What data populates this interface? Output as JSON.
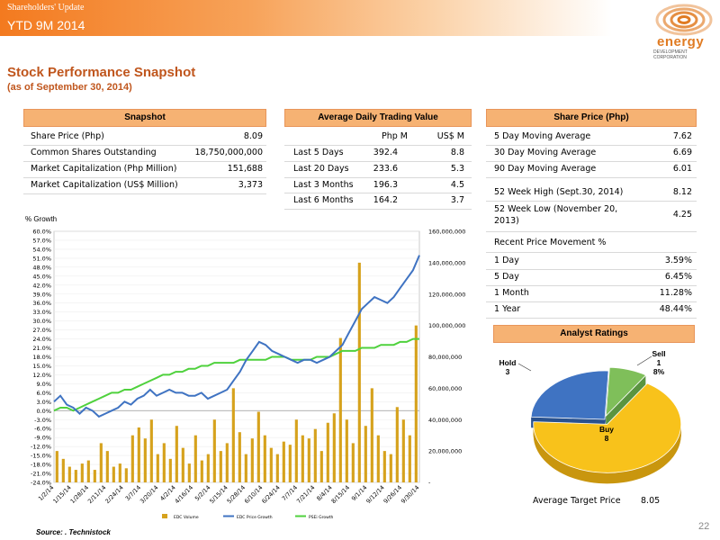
{
  "header": {
    "top_label": "Shareholders' Update",
    "period_label": "YTD 9M 2014",
    "logo_word": "energy",
    "logo_sub": "DEVELOPMENT CORPORATION"
  },
  "title": "Stock Performance Snapshot",
  "subtitle": "(as of September 30, 2014)",
  "snapshot": {
    "heading": "Snapshot",
    "rows": [
      {
        "label": "Share Price (Php)",
        "value": "8.09"
      },
      {
        "label": "Common Shares Outstanding",
        "value": "18,750,000,000"
      },
      {
        "label": "Market Capitalization (Php Million)",
        "value": "151,688"
      },
      {
        "label": "Market Capitalization (US$ Million)",
        "value": "3,373"
      }
    ]
  },
  "trading": {
    "heading": "Average Daily Trading Value",
    "col1": "Php M",
    "col2": "US$ M",
    "rows": [
      {
        "label": "Last 5 Days",
        "php": "392.4",
        "usd": "8.8"
      },
      {
        "label": "Last 20 Days",
        "php": "233.6",
        "usd": "5.3"
      },
      {
        "label": "Last 3 Months",
        "php": "196.3",
        "usd": "4.5"
      },
      {
        "label": "Last 6 Months",
        "php": "164.2",
        "usd": "3.7"
      }
    ]
  },
  "share_price": {
    "heading": "Share Price (Php)",
    "rows": [
      {
        "label": "5 Day Moving Average",
        "value": "7.62"
      },
      {
        "label": "30 Day Moving Average",
        "value": "6.69"
      },
      {
        "label": "90 Day Moving Average",
        "value": "6.01"
      },
      {
        "label": "52 Week High (Sept.30, 2014)",
        "value": "8.12"
      },
      {
        "label": "52 Week Low (November 20, 2013)",
        "value": "4.25"
      }
    ],
    "movement_heading": "Recent Price Movement %",
    "movement": [
      {
        "label": "1 Day",
        "value": "3.59%"
      },
      {
        "label": "5 Day",
        "value": "6.45%"
      },
      {
        "label": "1 Month",
        "value": "11.28%"
      },
      {
        "label": "1 Year",
        "value": "48.44%"
      }
    ]
  },
  "analyst": {
    "heading": "Analyst Ratings",
    "target_label": "Average Target Price",
    "target_value": "8.05"
  },
  "source": "Source: . Technistock",
  "page_number": "22",
  "chart_data": [
    {
      "type": "line",
      "ylabel": "% Growth",
      "ylim": [
        -24,
        60
      ],
      "y2lim": [
        0,
        160000000
      ],
      "y_ticks": [
        "60.0%",
        "57.0%",
        "54.0%",
        "51.0%",
        "48.0%",
        "45.0%",
        "42.0%",
        "39.0%",
        "36.0%",
        "33.0%",
        "30.0%",
        "27.0%",
        "24.0%",
        "21.0%",
        "18.0%",
        "15.0%",
        "12.0%",
        "9.0%",
        "6.0%",
        "3.0%",
        "0.0%",
        "-3.0%",
        "-6.0%",
        "-9.0%",
        "-12.0%",
        "-15.0%",
        "-18.0%",
        "-21.0%",
        "-24.0%"
      ],
      "y2_ticks": [
        "160,000,000",
        "140,000,000",
        "120,000,000",
        "100,000,000",
        "80,000,000",
        "60,000,000",
        "40,000,000",
        "20,000,000",
        "-"
      ],
      "x_ticks": [
        "1/2/14",
        "1/15/14",
        "1/28/14",
        "2/11/14",
        "2/24/14",
        "3/7/14",
        "3/20/14",
        "4/2/14",
        "4/16/14",
        "5/2/14",
        "5/15/14",
        "5/28/14",
        "6/10/14",
        "6/24/14",
        "7/7/14",
        "7/21/14",
        "8/4/14",
        "8/15/14",
        "9/1/14",
        "9/12/14",
        "9/26/14",
        "9/30/14"
      ],
      "legend": [
        "EDC Volume",
        "EDC Price Growth",
        "PSEi Growth"
      ],
      "series": [
        {
          "name": "EDC Price Growth",
          "color": "#3f73c2",
          "values": [
            3,
            5,
            2,
            1,
            -1,
            1,
            0,
            -2,
            -1,
            0,
            1,
            3,
            2,
            4,
            5,
            7,
            5,
            6,
            7,
            6,
            6,
            5,
            5,
            6,
            4,
            5,
            6,
            7,
            10,
            13,
            17,
            20,
            23,
            22,
            20,
            19,
            18,
            17,
            16,
            17,
            17,
            16,
            17,
            18,
            20,
            22,
            26,
            30,
            34,
            36,
            38,
            37,
            36,
            38,
            41,
            44,
            47,
            52
          ]
        },
        {
          "name": "PSEi Growth",
          "color": "#4fd13d",
          "values": [
            0,
            1,
            1,
            0,
            1,
            2,
            3,
            4,
            5,
            6,
            6,
            7,
            7,
            8,
            9,
            10,
            11,
            12,
            12,
            13,
            13,
            14,
            14,
            15,
            15,
            16,
            16,
            16,
            16,
            17,
            17,
            17,
            17,
            17,
            18,
            18,
            18,
            17,
            17,
            17,
            17,
            18,
            18,
            18,
            19,
            20,
            20,
            20,
            21,
            21,
            21,
            22,
            22,
            22,
            23,
            23,
            24,
            24
          ]
        },
        {
          "name": "EDC Volume",
          "color": "#d6a21d",
          "values": [
            20,
            15,
            10,
            8,
            12,
            14,
            8,
            25,
            20,
            10,
            12,
            9,
            30,
            35,
            28,
            40,
            18,
            25,
            15,
            36,
            22,
            12,
            30,
            14,
            18,
            40,
            20,
            25,
            60,
            32,
            18,
            28,
            45,
            30,
            22,
            18,
            26,
            24,
            40,
            30,
            28,
            34,
            20,
            38,
            44,
            92,
            40,
            25,
            140,
            36,
            60,
            30,
            20,
            18,
            48,
            40,
            30,
            100
          ]
        }
      ]
    },
    {
      "type": "pie",
      "categories": [
        "Buy",
        "Hold",
        "Sell"
      ],
      "values": [
        8,
        3,
        1
      ],
      "labels": [
        "Buy\n8",
        "Hold\n3",
        "Sell\n1\n8%"
      ],
      "colors": [
        "#f8c21b",
        "#3f73c2",
        "#7fbf5a"
      ]
    }
  ]
}
